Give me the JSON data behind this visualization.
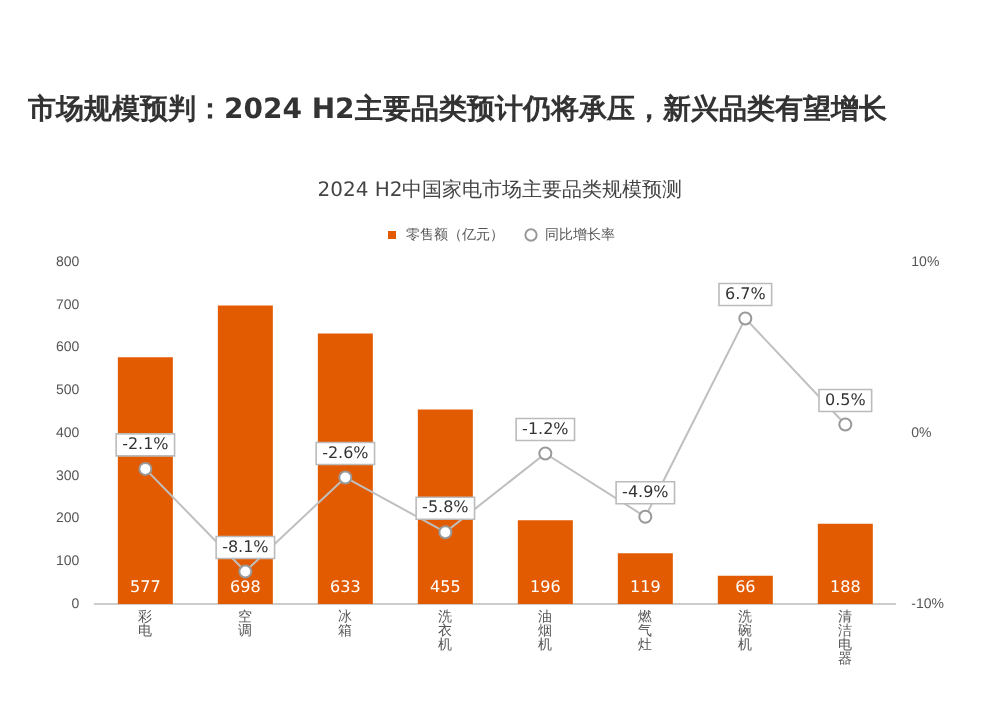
{
  "chart_data": {
    "type": "bar",
    "title": "市场规模预判：2024 H2主要品类预计仍将承压，新兴品类有望增长",
    "subtitle": "2024 H2中国家电市场主要品类规模预测",
    "categories": [
      "彩电",
      "空调",
      "冰箱",
      "洗衣机",
      "油烟机",
      "燃气灶",
      "洗碗机",
      "清洁电器"
    ],
    "series": [
      {
        "name": "零售额（亿元）",
        "color": "#e35b00",
        "values": [
          577,
          698,
          633,
          455,
          196,
          119,
          66,
          188
        ],
        "value_labels": [
          "577",
          "698",
          "633",
          "455",
          "196",
          "119",
          "66",
          "188"
        ]
      },
      {
        "name": "同比增长率",
        "type": "line",
        "axis": "y2",
        "color": "#bfbfbf",
        "marker": "circle",
        "values": [
          -2.1,
          -8.1,
          -2.6,
          -5.8,
          -1.2,
          -4.9,
          6.7,
          0.5
        ],
        "value_labels": [
          "-2.1%",
          "-8.1%",
          "-2.6%",
          "-5.8%",
          "-1.2%",
          "-4.9%",
          "6.7%",
          "0.5%"
        ]
      }
    ],
    "ylim": [
      0,
      800
    ],
    "yticks": [
      0,
      100,
      200,
      300,
      400,
      500,
      600,
      700,
      800
    ],
    "y2lim": [
      -10,
      10
    ],
    "y2ticks": [
      {
        "value": -10,
        "label": "-10%"
      },
      {
        "value": 0,
        "label": "0%"
      },
      {
        "value": 10,
        "label": "10%"
      }
    ],
    "legend": "top",
    "grid": false
  }
}
